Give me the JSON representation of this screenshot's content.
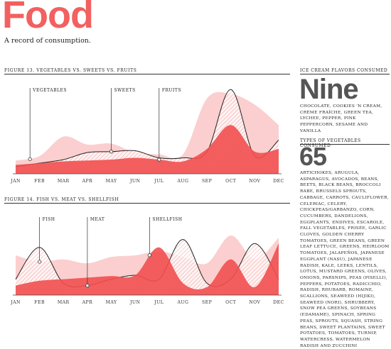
{
  "header": {
    "title": "Food",
    "subtitle": "A record of consumption."
  },
  "colors": {
    "accent": "#f26060",
    "solid": "#f24f4f",
    "light": "#fbcaca",
    "hatch": "#f28a8a",
    "line": "#222222"
  },
  "sidebar": {
    "ice_label": "ICE CREAM FLAVORS CONSUMED",
    "ice_big": "Nine",
    "ice_text": "CHOCOLATE, COOKIES 'N CREAM, CRÈME FRAÎCHE, GREEN TEA, LYCHEE, PEPPER, PINK PEPPERCORN, SESAME AND VANILLA",
    "veg_label": "TYPES OF VEGETABLES CONSUMED",
    "veg_big": "65",
    "veg_text": "ARTICHOKES, ARUGULA, ASPARAGUS, AVOCADOS, BEANS, BEETS, BLACK BEANS, BROCCOLI RABE, BRUSSELS SPROUTS, CABBAGE, CARROTS, CAULIFLOWER, CELERIAC, CELERY, CHICKPEAS/GARBANZO, CORN, CUCUMBERS, DANDELIONS, EGGPLANTS, ENDIVES, ESCAROLE, FALL VEGETABLES, FRISÉE, GARLIC CLOVES, GOLDEN CHERRY TOMATOES, GREEN BEANS, GREEN LEAF LETTUCE, GREENS, HEIRLOOM TOMATOES, JALAPEÑOS, JAPANESE EGGPLANT (NASU), JAPANESE RADISH, KALE, LEEKS, LENTILS, LOTUS, MUSTARD GREENS, OLIVES, ONIONS, PARSNIPS, PEAS (PISELLI), PEPPERS, POTATOES, RADICCHIO, RADISH, RHUBARB, ROMAINE, SCALLIONS, SEAWEED (HIJIKI), SEAWEED (NORI), SHRUBBERY, SNOW PEA GREENS, SOYBEANS (EDAMAME), SPINACH, SPRING PEAS, SPROUTS, SQUASH, STRING BEANS, SWEET PLANTAINS, SWEET POTATOES, TOMATOES, TURNIP, WATERCRESS, WATERMELON RADISH AND ZUCCHINI"
  },
  "chart_data": [
    {
      "type": "area",
      "title": "FIGURE 13. VEGETABLES VS. SWEETS VS. FRUITS",
      "categories": [
        "JAN",
        "FEB",
        "MAR",
        "APR",
        "MAY",
        "JUN",
        "JUL",
        "AUG",
        "SEP",
        "OCT",
        "NOV",
        "DEC"
      ],
      "ylim": [
        0,
        100
      ],
      "series": [
        {
          "name": "Vegetables",
          "style": "light",
          "values": [
            15,
            20,
            42,
            33,
            34,
            24,
            22,
            22,
            85,
            90,
            78,
            55
          ]
        },
        {
          "name": "Sweets",
          "style": "hatch",
          "values": [
            8,
            12,
            16,
            24,
            25,
            26,
            18,
            18,
            25,
            95,
            20,
            38
          ]
        },
        {
          "name": "Fruits",
          "style": "solid",
          "values": [
            10,
            12,
            14,
            15,
            16,
            18,
            16,
            14,
            28,
            55,
            25,
            28
          ]
        }
      ],
      "annotations": [
        {
          "label": "VEGETABLES",
          "series": "Vegetables",
          "x": 0.6
        },
        {
          "label": "SWEETS",
          "series": "Sweets",
          "x": 4.0
        },
        {
          "label": "FRUITS",
          "series": "Fruits",
          "x": 6.0
        }
      ]
    },
    {
      "type": "area",
      "title": "FIGURE 14. FISH VS. MEAT VS. SHELLFISH",
      "categories": [
        "JAN",
        "FEB",
        "MAR",
        "APR",
        "MAY",
        "JUN",
        "JUL",
        "AUG",
        "SEP",
        "OCT",
        "NOV",
        "DEC"
      ],
      "ylim": [
        0,
        100
      ],
      "series": [
        {
          "name": "Fish",
          "style": "light",
          "values": [
            50,
            42,
            45,
            40,
            48,
            50,
            55,
            48,
            40,
            75,
            45,
            72
          ]
        },
        {
          "name": "Meat",
          "style": "hatch",
          "values": [
            20,
            60,
            15,
            12,
            20,
            25,
            20,
            70,
            15,
            20,
            65,
            20
          ]
        },
        {
          "name": "Shellfish",
          "style": "solid",
          "values": [
            12,
            18,
            20,
            22,
            24,
            25,
            60,
            15,
            10,
            45,
            10,
            65
          ]
        }
      ],
      "annotations": [
        {
          "label": "FISH",
          "series": "Fish",
          "x": 1.0
        },
        {
          "label": "MEAT",
          "series": "Meat",
          "x": 3.0
        },
        {
          "label": "SHELLFISH",
          "series": "Shellfish",
          "x": 5.6
        }
      ]
    }
  ]
}
